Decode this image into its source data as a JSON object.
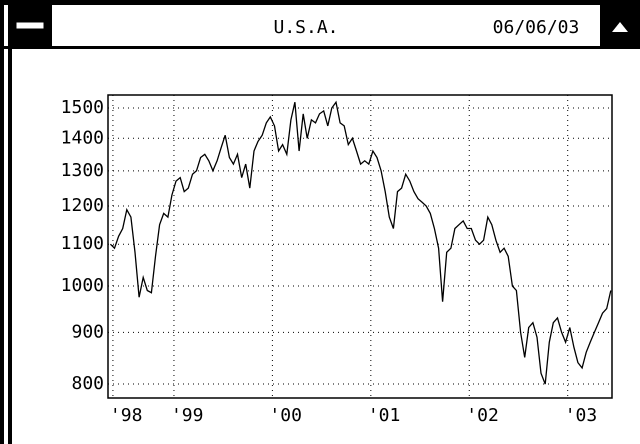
{
  "window": {
    "title": "U.S.A.",
    "date": "06/06/03"
  },
  "chart_data": {
    "type": "line",
    "log_y": true,
    "grid": true,
    "x": [
      1998.354,
      1998.396,
      1998.438,
      1998.479,
      1998.521,
      1998.563,
      1998.604,
      1998.646,
      1998.688,
      1998.729,
      1998.771,
      1998.813,
      1998.854,
      1998.896,
      1998.938,
      1998.979,
      1999.021,
      1999.063,
      1999.104,
      1999.146,
      1999.188,
      1999.229,
      1999.271,
      1999.313,
      1999.354,
      1999.396,
      1999.438,
      1999.479,
      1999.521,
      1999.563,
      1999.604,
      1999.646,
      1999.688,
      1999.729,
      1999.771,
      1999.813,
      1999.854,
      1999.896,
      1999.938,
      1999.979,
      2000.021,
      2000.063,
      2000.104,
      2000.146,
      2000.188,
      2000.229,
      2000.271,
      2000.313,
      2000.354,
      2000.396,
      2000.438,
      2000.479,
      2000.521,
      2000.563,
      2000.604,
      2000.646,
      2000.688,
      2000.729,
      2000.771,
      2000.813,
      2000.854,
      2000.896,
      2000.938,
      2000.979,
      2001.021,
      2001.063,
      2001.104,
      2001.146,
      2001.188,
      2001.229,
      2001.271,
      2001.313,
      2001.354,
      2001.396,
      2001.438,
      2001.479,
      2001.521,
      2001.563,
      2001.604,
      2001.646,
      2001.688,
      2001.729,
      2001.771,
      2001.813,
      2001.854,
      2001.896,
      2001.938,
      2001.979,
      2002.021,
      2002.063,
      2002.104,
      2002.146,
      2002.188,
      2002.229,
      2002.271,
      2002.313,
      2002.354,
      2002.396,
      2002.438,
      2002.479,
      2002.521,
      2002.563,
      2002.604,
      2002.646,
      2002.688,
      2002.729,
      2002.771,
      2002.813,
      2002.854,
      2002.896,
      2002.938,
      2002.979,
      2003.021,
      2003.063,
      2003.104,
      2003.146,
      2003.188,
      2003.229,
      2003.271,
      2003.313,
      2003.354,
      2003.396,
      2003.438
    ],
    "series": [
      {
        "color": "#000000",
        "values": [
          1100,
          1090,
          1120,
          1140,
          1190,
          1170,
          1080,
          975,
          1020,
          990,
          985,
          1070,
          1150,
          1180,
          1170,
          1230,
          1270,
          1280,
          1240,
          1250,
          1290,
          1300,
          1340,
          1350,
          1330,
          1300,
          1330,
          1370,
          1410,
          1340,
          1320,
          1350,
          1280,
          1320,
          1250,
          1360,
          1390,
          1410,
          1450,
          1470,
          1440,
          1360,
          1380,
          1350,
          1460,
          1520,
          1360,
          1480,
          1400,
          1460,
          1450,
          1480,
          1490,
          1440,
          1500,
          1520,
          1450,
          1440,
          1380,
          1400,
          1360,
          1320,
          1330,
          1320,
          1360,
          1340,
          1300,
          1240,
          1170,
          1140,
          1240,
          1250,
          1290,
          1270,
          1240,
          1220,
          1210,
          1200,
          1180,
          1140,
          1090,
          965,
          1080,
          1090,
          1140,
          1150,
          1160,
          1140,
          1140,
          1110,
          1100,
          1110,
          1170,
          1150,
          1110,
          1080,
          1090,
          1070,
          1000,
          990,
          900,
          850,
          910,
          920,
          890,
          820,
          800,
          880,
          920,
          930,
          900,
          880,
          910,
          870,
          840,
          830,
          860,
          880,
          900,
          920,
          940,
          950,
          990
        ]
      }
    ],
    "xlim": [
      1998.33,
      2003.45
    ],
    "xticks": [
      {
        "value": 1998.38,
        "label": "'98"
      },
      {
        "value": 1999,
        "label": "'99"
      },
      {
        "value": 2000,
        "label": "'00"
      },
      {
        "value": 2001,
        "label": "'01"
      },
      {
        "value": 2002,
        "label": "'02"
      },
      {
        "value": 2003,
        "label": "'03"
      }
    ],
    "ylim": [
      775,
      1545
    ],
    "yticks": [
      800,
      900,
      1000,
      1100,
      1200,
      1300,
      1400,
      1500
    ]
  }
}
